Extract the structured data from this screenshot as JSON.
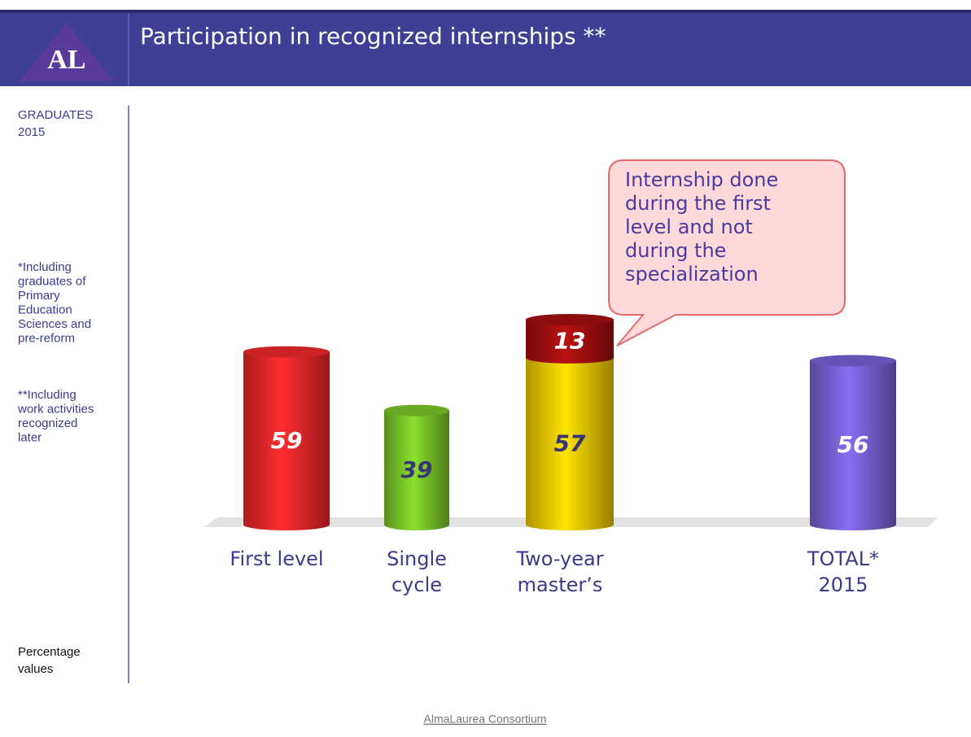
{
  "header": {
    "logo": "AL",
    "title": "Participation in recognized internships **"
  },
  "sidebar": {
    "cohort": [
      "GRADUATES",
      "2015"
    ],
    "notes": [
      [
        "*Including",
        "graduates of",
        "Primary",
        "Education",
        "Sciences and",
        "pre-reform"
      ],
      [
        "**Including",
        "work activities",
        "recognized",
        "later"
      ]
    ],
    "units": [
      "Percentage",
      "values"
    ]
  },
  "chart_data": {
    "type": "bar",
    "stacked": true,
    "categories": [
      [
        "First level"
      ],
      [
        "Single",
        "cycle"
      ],
      [
        "Two-year",
        "master’s"
      ],
      [
        "TOTAL*",
        "2015"
      ]
    ],
    "series": [
      {
        "values": [
          59,
          39,
          57,
          56
        ],
        "colors": [
          "#f0282a",
          "#7cc828",
          "#f5cc00",
          "#7a62d8"
        ],
        "label_colors": [
          "#ffffff",
          "#3a3476",
          "#3a3476",
          "#ffffff"
        ]
      },
      {
        "values": [
          null,
          null,
          13,
          null
        ],
        "color": "#a50f0f",
        "label_color": "#ffffff"
      }
    ],
    "annotation": [
      "Internship done",
      "during the first",
      "level and not",
      "during the",
      "specialization"
    ]
  },
  "footer": "AlmaLaurea Consortium"
}
